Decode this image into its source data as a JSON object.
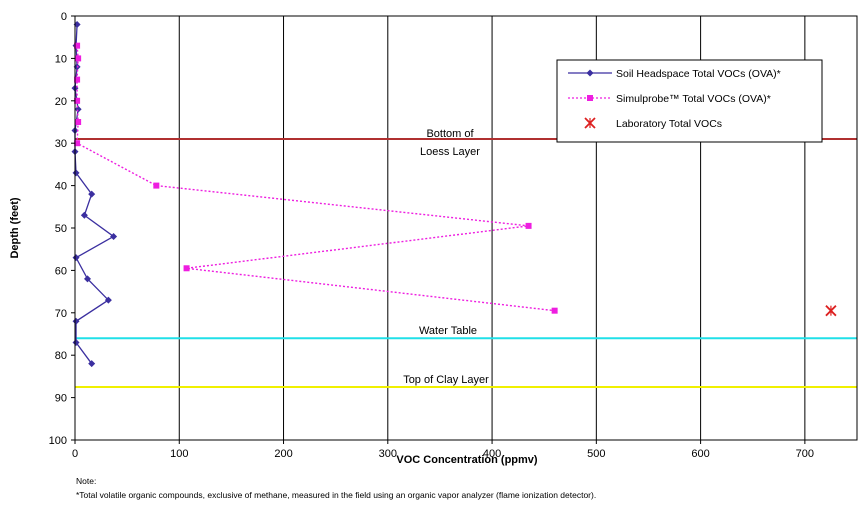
{
  "chart_data": {
    "type": "line",
    "xlabel": "VOC Concentration (ppmv)",
    "ylabel": "Depth (feet)",
    "xlim": [
      0,
      750
    ],
    "ylim": [
      0,
      100
    ],
    "y_inverted": true,
    "x_ticks": [
      0,
      100,
      200,
      300,
      400,
      500,
      600,
      700
    ],
    "y_ticks": [
      0,
      10,
      20,
      30,
      40,
      50,
      60,
      70,
      80,
      90,
      100
    ],
    "x_tick_labels": [
      "0",
      "100",
      "200",
      "300",
      "400",
      "500",
      "600",
      "700"
    ],
    "y_tick_labels": [
      "0",
      "10",
      "20",
      "30",
      "40",
      "50",
      "60",
      "70",
      "80",
      "90",
      "100"
    ],
    "grid": "vertical",
    "legend_position": "top-right",
    "series": [
      {
        "name": "Soil Headspace Total VOCs (OVA)*",
        "style": "solid-line-diamond",
        "color": "#3b2fa0",
        "points": [
          [
            2,
            2
          ],
          [
            1,
            7
          ],
          [
            2,
            12
          ],
          [
            0,
            17
          ],
          [
            3,
            22
          ],
          [
            0,
            27
          ],
          [
            0,
            32
          ],
          [
            1,
            37
          ],
          [
            16,
            42
          ],
          [
            9,
            47
          ],
          [
            37,
            52
          ],
          [
            1,
            57
          ],
          [
            12,
            62
          ],
          [
            32,
            67
          ],
          [
            1,
            72
          ],
          [
            1,
            77
          ],
          [
            16,
            82
          ]
        ]
      },
      {
        "name": "Simulprobe™ Total VOCs (OVA)*",
        "style": "dotted-line-square",
        "color": "#ee1ee0",
        "points": [
          [
            2,
            7
          ],
          [
            3,
            10
          ],
          [
            2,
            15
          ],
          [
            2,
            20
          ],
          [
            3,
            25
          ],
          [
            2,
            30
          ],
          [
            78,
            40
          ],
          [
            435,
            49.5
          ],
          [
            107,
            59.5
          ],
          [
            460,
            69.5
          ]
        ]
      },
      {
        "name": "Laboratory Total VOCs",
        "style": "marker-x",
        "color": "#dd2020",
        "points": [
          [
            725,
            69.5
          ]
        ]
      }
    ],
    "reference_lines": [
      {
        "label": "Bottom of Loess Layer",
        "label_lines": [
          "Bottom of",
          "Loess Layer"
        ],
        "depth": 29,
        "color": "#b03030"
      },
      {
        "label": "Water Table",
        "label_lines": [
          "Water Table"
        ],
        "depth": 76,
        "color": "#20e0e8"
      },
      {
        "label": "Top of Clay Layer",
        "label_lines": [
          "Top of Clay Layer"
        ],
        "depth": 87.5,
        "color": "#f0f000"
      }
    ],
    "note_heading": "Note:",
    "note_text": "*Total volatile organic compounds, exclusive of methane, measured in the field using an organic vapor analyzer (flame ionization detector)."
  }
}
